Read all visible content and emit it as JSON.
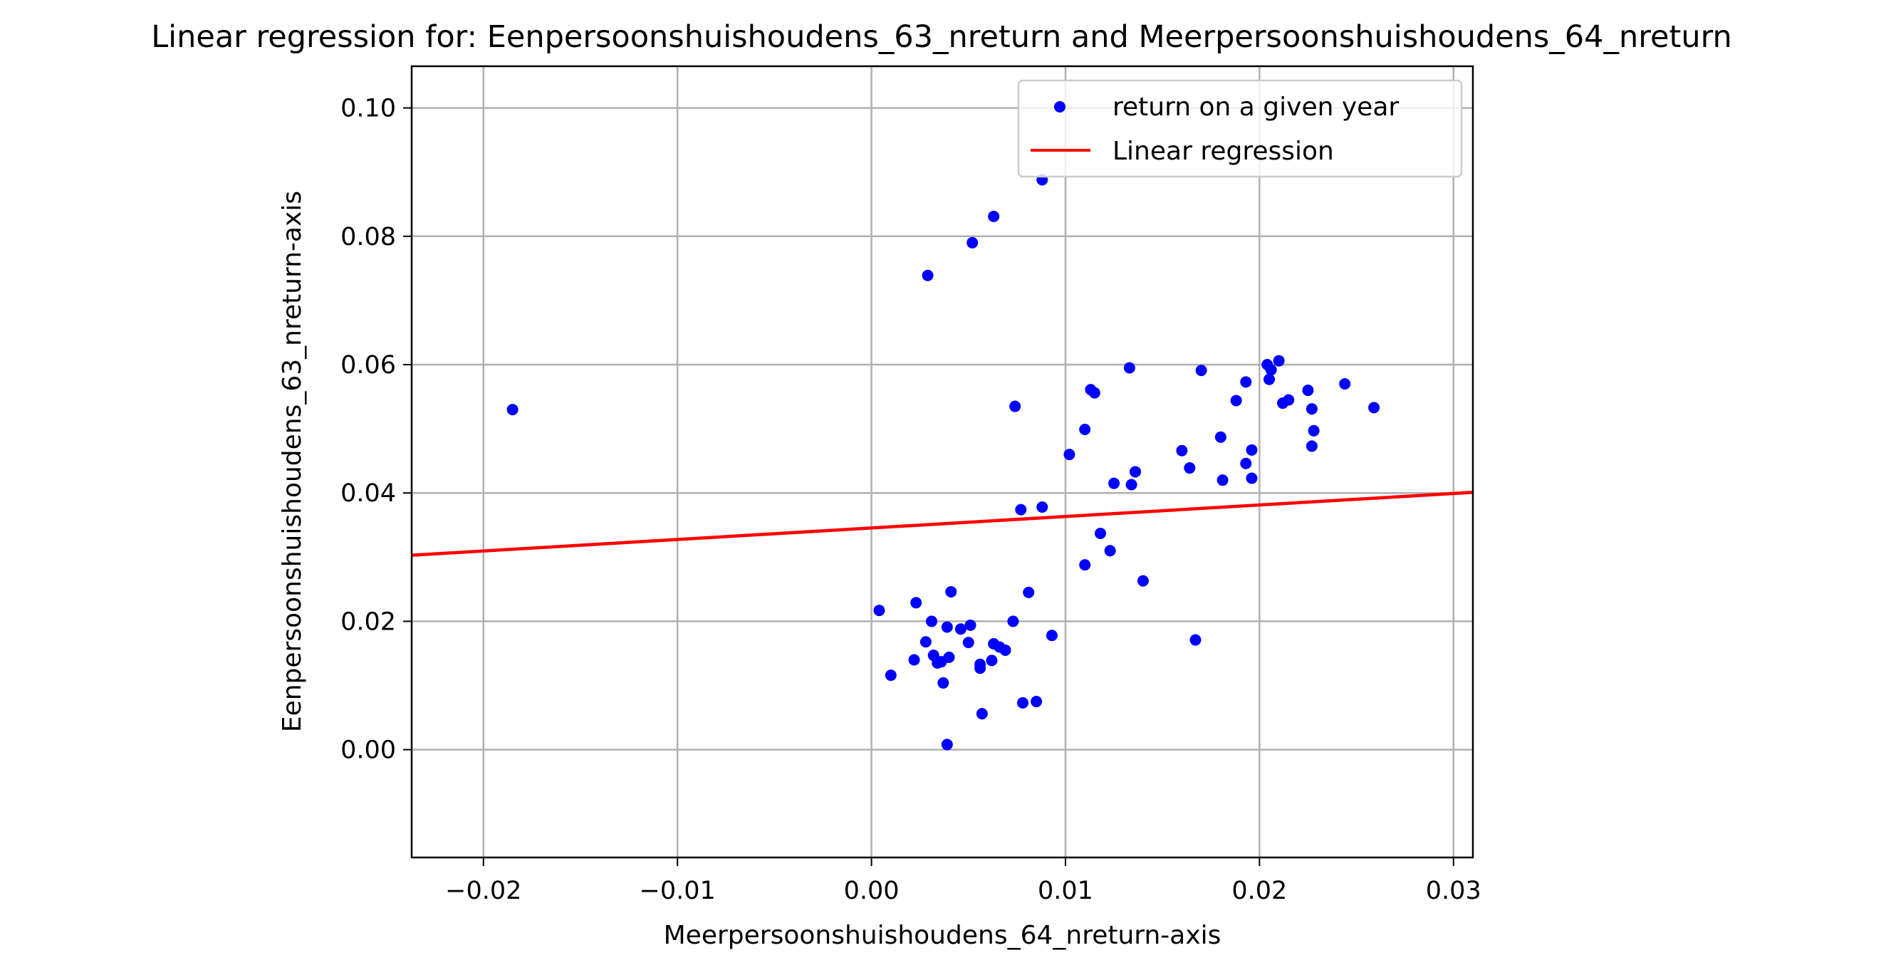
{
  "chart_data": {
    "type": "scatter",
    "title": "Linear regression for: Eenpersoonshuishoudens_63_nreturn and Meerpersoonshuishoudens_64_nreturn",
    "xlabel": "Meerpersoonshuishoudens_64_nreturn-axis",
    "ylabel": "Eenpersoonshuishoudens_63_nreturn-axis",
    "xlim": [
      -0.0237,
      0.031
    ],
    "ylim": [
      -0.0168,
      0.1065
    ],
    "x_ticks": [
      -0.02,
      -0.01,
      0.0,
      0.01,
      0.02,
      0.03
    ],
    "x_tick_labels": [
      "−0.02",
      "−0.01",
      "0.00",
      "0.01",
      "0.02",
      "0.03"
    ],
    "y_ticks": [
      0.0,
      0.02,
      0.04,
      0.06,
      0.08,
      0.1
    ],
    "y_tick_labels": [
      "0.00",
      "0.02",
      "0.04",
      "0.06",
      "0.08",
      "0.10"
    ],
    "grid": true,
    "legend_position": "top-right",
    "series": [
      {
        "name": "return on a given year",
        "kind": "scatter",
        "color": "#0000ff",
        "points": [
          [
            -0.0185,
            0.053
          ],
          [
            0.0029,
            0.0739
          ],
          [
            0.0052,
            0.079
          ],
          [
            0.0063,
            0.0831
          ],
          [
            0.0088,
            0.0888
          ],
          [
            0.0074,
            0.0535
          ],
          [
            0.0102,
            0.046
          ],
          [
            0.011,
            0.0499
          ],
          [
            0.0113,
            0.0561
          ],
          [
            0.0115,
            0.0556
          ],
          [
            0.0133,
            0.0595
          ],
          [
            0.0125,
            0.0415
          ],
          [
            0.0134,
            0.0413
          ],
          [
            0.0136,
            0.0433
          ],
          [
            0.0088,
            0.0378
          ],
          [
            0.0077,
            0.0374
          ],
          [
            0.0118,
            0.0337
          ],
          [
            0.0123,
            0.031
          ],
          [
            0.011,
            0.0288
          ],
          [
            0.014,
            0.0263
          ],
          [
            0.0081,
            0.0245
          ],
          [
            0.0093,
            0.0178
          ],
          [
            0.0167,
            0.0171
          ],
          [
            0.016,
            0.0466
          ],
          [
            0.0164,
            0.0439
          ],
          [
            0.017,
            0.0591
          ],
          [
            0.018,
            0.0487
          ],
          [
            0.0181,
            0.042
          ],
          [
            0.0188,
            0.0544
          ],
          [
            0.0193,
            0.0573
          ],
          [
            0.0193,
            0.0446
          ],
          [
            0.0196,
            0.0467
          ],
          [
            0.0196,
            0.0423
          ],
          [
            0.0204,
            0.06
          ],
          [
            0.0205,
            0.0577
          ],
          [
            0.0206,
            0.0592
          ],
          [
            0.021,
            0.0606
          ],
          [
            0.0212,
            0.054
          ],
          [
            0.0215,
            0.0545
          ],
          [
            0.0225,
            0.056
          ],
          [
            0.0227,
            0.0531
          ],
          [
            0.0228,
            0.0497
          ],
          [
            0.0227,
            0.0473
          ],
          [
            0.0244,
            0.057
          ],
          [
            0.0259,
            0.0533
          ],
          [
            0.0004,
            0.0217
          ],
          [
            0.001,
            0.0116
          ],
          [
            0.0022,
            0.014
          ],
          [
            0.0023,
            0.0229
          ],
          [
            0.0028,
            0.0168
          ],
          [
            0.0031,
            0.02
          ],
          [
            0.0032,
            0.0147
          ],
          [
            0.0034,
            0.0135
          ],
          [
            0.0036,
            0.0137
          ],
          [
            0.0037,
            0.0104
          ],
          [
            0.0039,
            0.0191
          ],
          [
            0.004,
            0.0144
          ],
          [
            0.0041,
            0.0246
          ],
          [
            0.0039,
            0.0008
          ],
          [
            0.0046,
            0.0188
          ],
          [
            0.005,
            0.0167
          ],
          [
            0.0051,
            0.0194
          ],
          [
            0.0056,
            0.0133
          ],
          [
            0.0056,
            0.0127
          ],
          [
            0.0057,
            0.0056
          ],
          [
            0.0062,
            0.0139
          ],
          [
            0.0063,
            0.0165
          ],
          [
            0.0066,
            0.016
          ],
          [
            0.0069,
            0.0155
          ],
          [
            0.0073,
            0.02
          ],
          [
            0.0078,
            0.0073
          ],
          [
            0.0085,
            0.0075
          ]
        ]
      },
      {
        "name": "Linear regression",
        "kind": "line",
        "color": "#ff0000",
        "points": [
          [
            -0.0237,
            0.0303
          ],
          [
            0.031,
            0.0401
          ]
        ]
      }
    ]
  }
}
